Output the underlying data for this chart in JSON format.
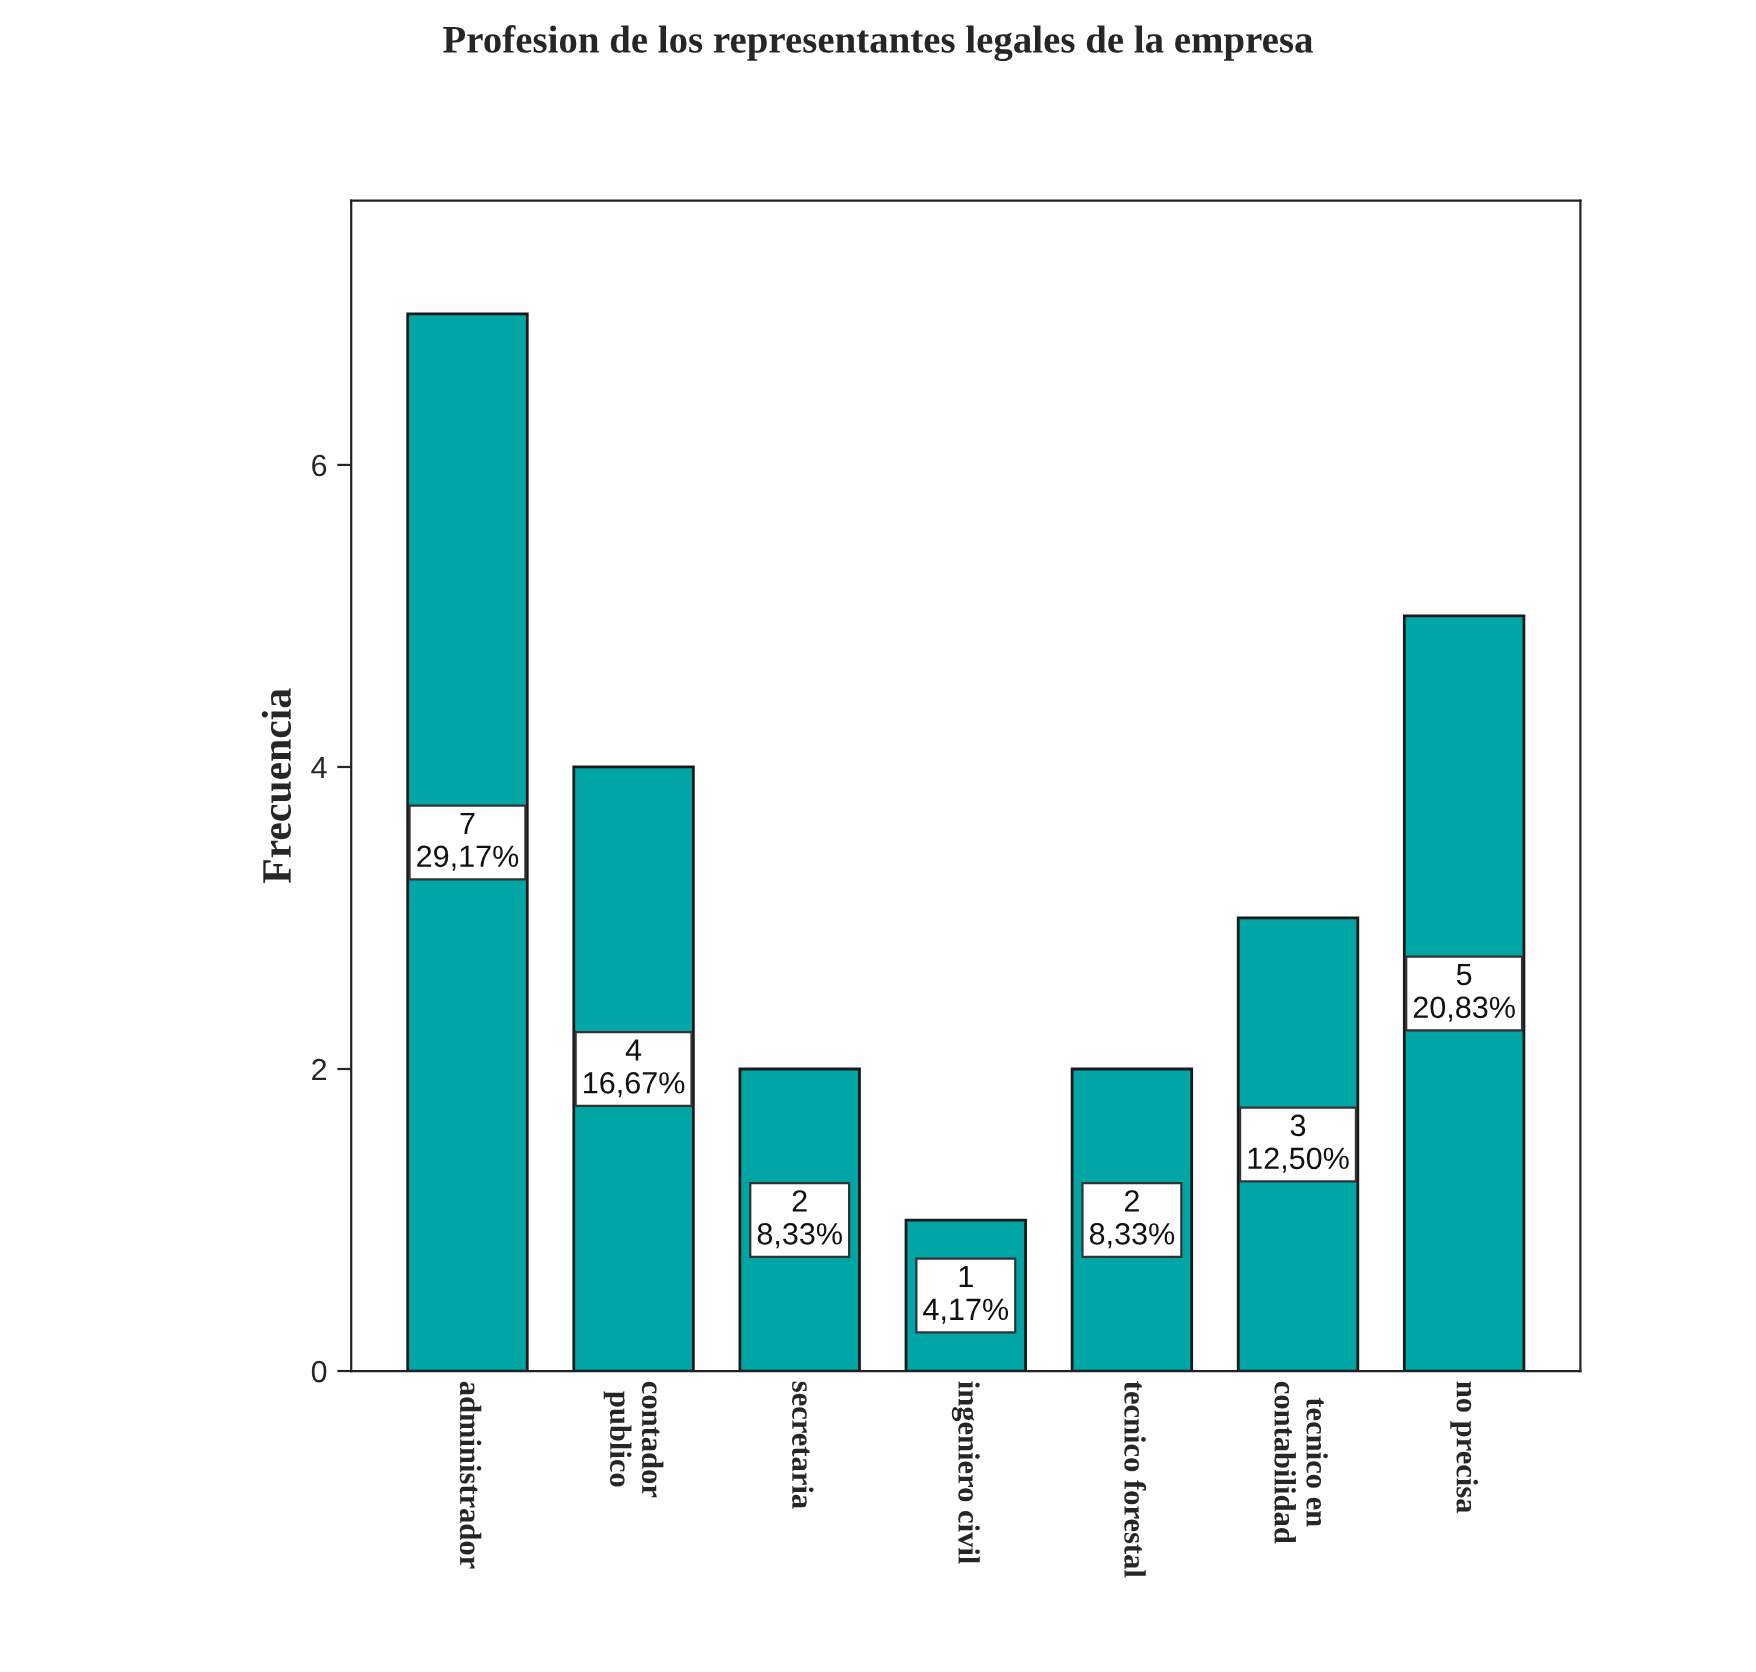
{
  "chart_data": {
    "type": "bar",
    "title": "Profesion de los representantes legales de la empresa",
    "ylabel": "Frecuencia",
    "categories": [
      "administrador",
      "contador\npublico",
      "secretaria",
      "ingeniero civil",
      "tecnico forestal",
      "tecnico en\ncontabilidad",
      "no precisa"
    ],
    "values": [
      7,
      4,
      2,
      1,
      2,
      3,
      5
    ],
    "value_labels": [
      "7\n29,17%",
      "4\n16,67%",
      "2\n8,33%",
      "1\n4,17%",
      "2\n8,33%",
      "3\n12,50%",
      "5\n20,83%"
    ],
    "color": "#00a5a5",
    "ylim": [
      0,
      7.75
    ],
    "yticks": [
      0,
      2,
      4,
      6
    ],
    "grid": false
  }
}
